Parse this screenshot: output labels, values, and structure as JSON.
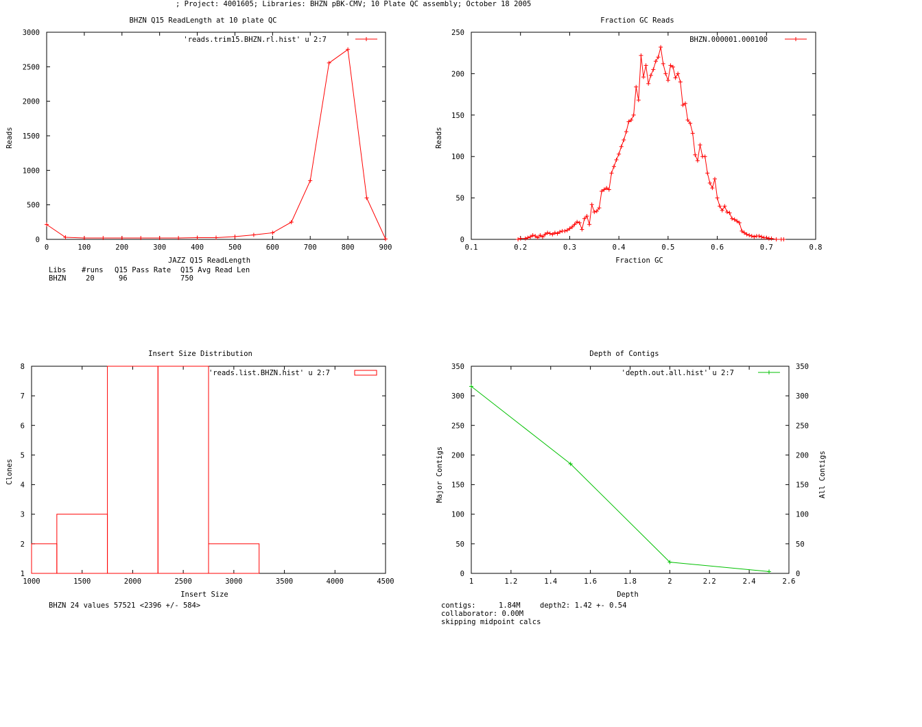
{
  "header": {
    "title": "; Project: 4001605; Libraries: BHZN pBK-CMV; 10 Plate QC assembly; October 18 2005"
  },
  "colors": {
    "red": "#ff0000",
    "green": "#00c000",
    "axis": "#000000"
  },
  "chart_data": [
    {
      "id": "readlength",
      "type": "line",
      "title": "BHZN Q15 ReadLength at 10 plate QC",
      "xlabel": "JAZZ Q15 ReadLength",
      "ylabel": "Reads",
      "xlim": [
        0,
        900
      ],
      "ylim": [
        0,
        3000
      ],
      "xticks": [
        0,
        100,
        200,
        300,
        400,
        500,
        600,
        700,
        800,
        900
      ],
      "yticks": [
        0,
        500,
        1000,
        1500,
        2000,
        2500,
        3000
      ],
      "legend": {
        "label": "'reads.trim15.BHZN.rl.hist' u 2:7",
        "placement": "top-right"
      },
      "series": [
        {
          "name": "'reads.trim15.BHZN.rl.hist' u 2:7",
          "color": "#ff0000",
          "marker": "plus",
          "x": [
            0,
            50,
            100,
            150,
            200,
            250,
            300,
            350,
            400,
            450,
            500,
            550,
            600,
            650,
            700,
            750,
            800,
            850,
            900
          ],
          "y": [
            215,
            30,
            20,
            20,
            20,
            20,
            20,
            20,
            25,
            25,
            40,
            65,
            95,
            250,
            850,
            2555,
            2750,
            600,
            5
          ]
        }
      ]
    },
    {
      "id": "fractiongc",
      "type": "line",
      "title": "Fraction GC Reads",
      "xlabel": "Fraction GC",
      "ylabel": "Reads",
      "xlim": [
        0.1,
        0.8
      ],
      "ylim": [
        0,
        250
      ],
      "xticks": [
        0.1,
        0.2,
        0.3,
        0.4,
        0.5,
        0.6,
        0.7,
        0.8
      ],
      "yticks": [
        0,
        50,
        100,
        150,
        200,
        250
      ],
      "legend": {
        "label": "BHZN.000001.000100",
        "placement": "top-right"
      },
      "series": [
        {
          "name": "BHZN.000001.000100",
          "color": "#ff0000",
          "marker": "plus",
          "x": [
            0.195,
            0.2,
            0.21,
            0.215,
            0.22,
            0.225,
            0.23,
            0.235,
            0.24,
            0.245,
            0.25,
            0.255,
            0.26,
            0.265,
            0.27,
            0.275,
            0.28,
            0.285,
            0.29,
            0.295,
            0.3,
            0.305,
            0.31,
            0.315,
            0.32,
            0.325,
            0.33,
            0.335,
            0.34,
            0.345,
            0.35,
            0.355,
            0.36,
            0.365,
            0.37,
            0.375,
            0.38,
            0.385,
            0.39,
            0.395,
            0.4,
            0.405,
            0.41,
            0.415,
            0.42,
            0.425,
            0.43,
            0.435,
            0.44,
            0.445,
            0.45,
            0.455,
            0.46,
            0.465,
            0.47,
            0.475,
            0.48,
            0.485,
            0.49,
            0.495,
            0.5,
            0.505,
            0.51,
            0.515,
            0.52,
            0.525,
            0.53,
            0.535,
            0.54,
            0.545,
            0.55,
            0.555,
            0.56,
            0.565,
            0.57,
            0.575,
            0.58,
            0.585,
            0.59,
            0.595,
            0.6,
            0.605,
            0.61,
            0.615,
            0.62,
            0.625,
            0.63,
            0.635,
            0.64,
            0.645,
            0.65,
            0.655,
            0.66,
            0.665,
            0.67,
            0.675,
            0.68,
            0.685,
            0.69,
            0.695,
            0.7,
            0.705,
            0.71,
            0.72,
            0.73,
            0.735
          ],
          "y": [
            0,
            1,
            1,
            2,
            3,
            5,
            4,
            2,
            5,
            3,
            6,
            8,
            7,
            6,
            8,
            7,
            9,
            10,
            10,
            11,
            13,
            15,
            18,
            21,
            20,
            12,
            25,
            28,
            18,
            42,
            33,
            34,
            38,
            58,
            60,
            62,
            60,
            80,
            88,
            96,
            103,
            112,
            120,
            130,
            142,
            144,
            150,
            184,
            168,
            222,
            196,
            210,
            188,
            198,
            205,
            215,
            220,
            232,
            212,
            200,
            192,
            210,
            208,
            195,
            200,
            190,
            162,
            164,
            144,
            140,
            128,
            102,
            95,
            114,
            100,
            100,
            80,
            68,
            62,
            73,
            50,
            40,
            35,
            40,
            33,
            32,
            25,
            24,
            22,
            20,
            10,
            8,
            6,
            5,
            4,
            3,
            4,
            4,
            3,
            2,
            2,
            1,
            1,
            0,
            0,
            0
          ]
        }
      ]
    },
    {
      "id": "insertsize",
      "type": "bar",
      "title": "Insert Size Distribution",
      "xlabel": "Insert Size",
      "ylabel": "Clones",
      "xlim": [
        1000,
        4500
      ],
      "ylim": [
        1,
        8
      ],
      "xticks": [
        1000,
        1500,
        2000,
        2500,
        3000,
        3500,
        4000,
        4500
      ],
      "yticks": [
        1,
        2,
        3,
        4,
        5,
        6,
        7,
        8
      ],
      "legend": {
        "label": "'reads.list.BHZN.hist' u 2:7",
        "placement": "top-right"
      },
      "series": [
        {
          "name": "'reads.list.BHZN.hist' u 2:7",
          "color": "#ff0000",
          "bins": [
            {
              "x0": 1000,
              "x1": 1250,
              "value": 2
            },
            {
              "x0": 1250,
              "x1": 1750,
              "value": 3
            },
            {
              "x0": 1750,
              "x1": 2250,
              "value": 8
            },
            {
              "x0": 2250,
              "x1": 2750,
              "value": 8
            },
            {
              "x0": 2750,
              "x1": 3250,
              "value": 2
            },
            {
              "x0": 3250,
              "x1": 3750,
              "value": 1
            }
          ]
        }
      ]
    },
    {
      "id": "depth",
      "type": "line",
      "title": "Depth of Contigs",
      "xlabel": "Depth",
      "ylabel": "Major Contigs",
      "y2label": "All Contigs",
      "xlim": [
        1,
        2.6
      ],
      "ylim": [
        0,
        350
      ],
      "xticks": [
        1,
        1.2,
        1.4,
        1.6,
        1.8,
        2,
        2.2,
        2.4,
        2.6
      ],
      "yticks": [
        0,
        50,
        100,
        150,
        200,
        250,
        300,
        350
      ],
      "legend": {
        "label": "'depth.out.all.hist' u 2:7",
        "placement": "top-right"
      },
      "series": [
        {
          "name": "'depth.out.all.hist' u 2:7",
          "color": "#00c000",
          "marker": "plus",
          "x": [
            1,
            1.5,
            2,
            2.5
          ],
          "y": [
            316,
            185,
            19,
            3
          ]
        }
      ]
    }
  ],
  "annotations": {
    "readlength_table": {
      "headers": [
        "Libs",
        "#runs",
        "Q15 Pass Rate",
        "Q15 Avg Read Len"
      ],
      "row": [
        "BHZN",
        "20",
        "96",
        "750"
      ]
    },
    "insert_summary": "BHZN 24 values 57521 <2396 +/- 584>",
    "depth_stats": {
      "line1_label": "contigs:",
      "line1_value": "1.84M",
      "line1_depth": "depth2: 1.42 +- 0.54",
      "line2": "collaborator: 0.00M",
      "line3": "skipping midpoint calcs"
    }
  }
}
